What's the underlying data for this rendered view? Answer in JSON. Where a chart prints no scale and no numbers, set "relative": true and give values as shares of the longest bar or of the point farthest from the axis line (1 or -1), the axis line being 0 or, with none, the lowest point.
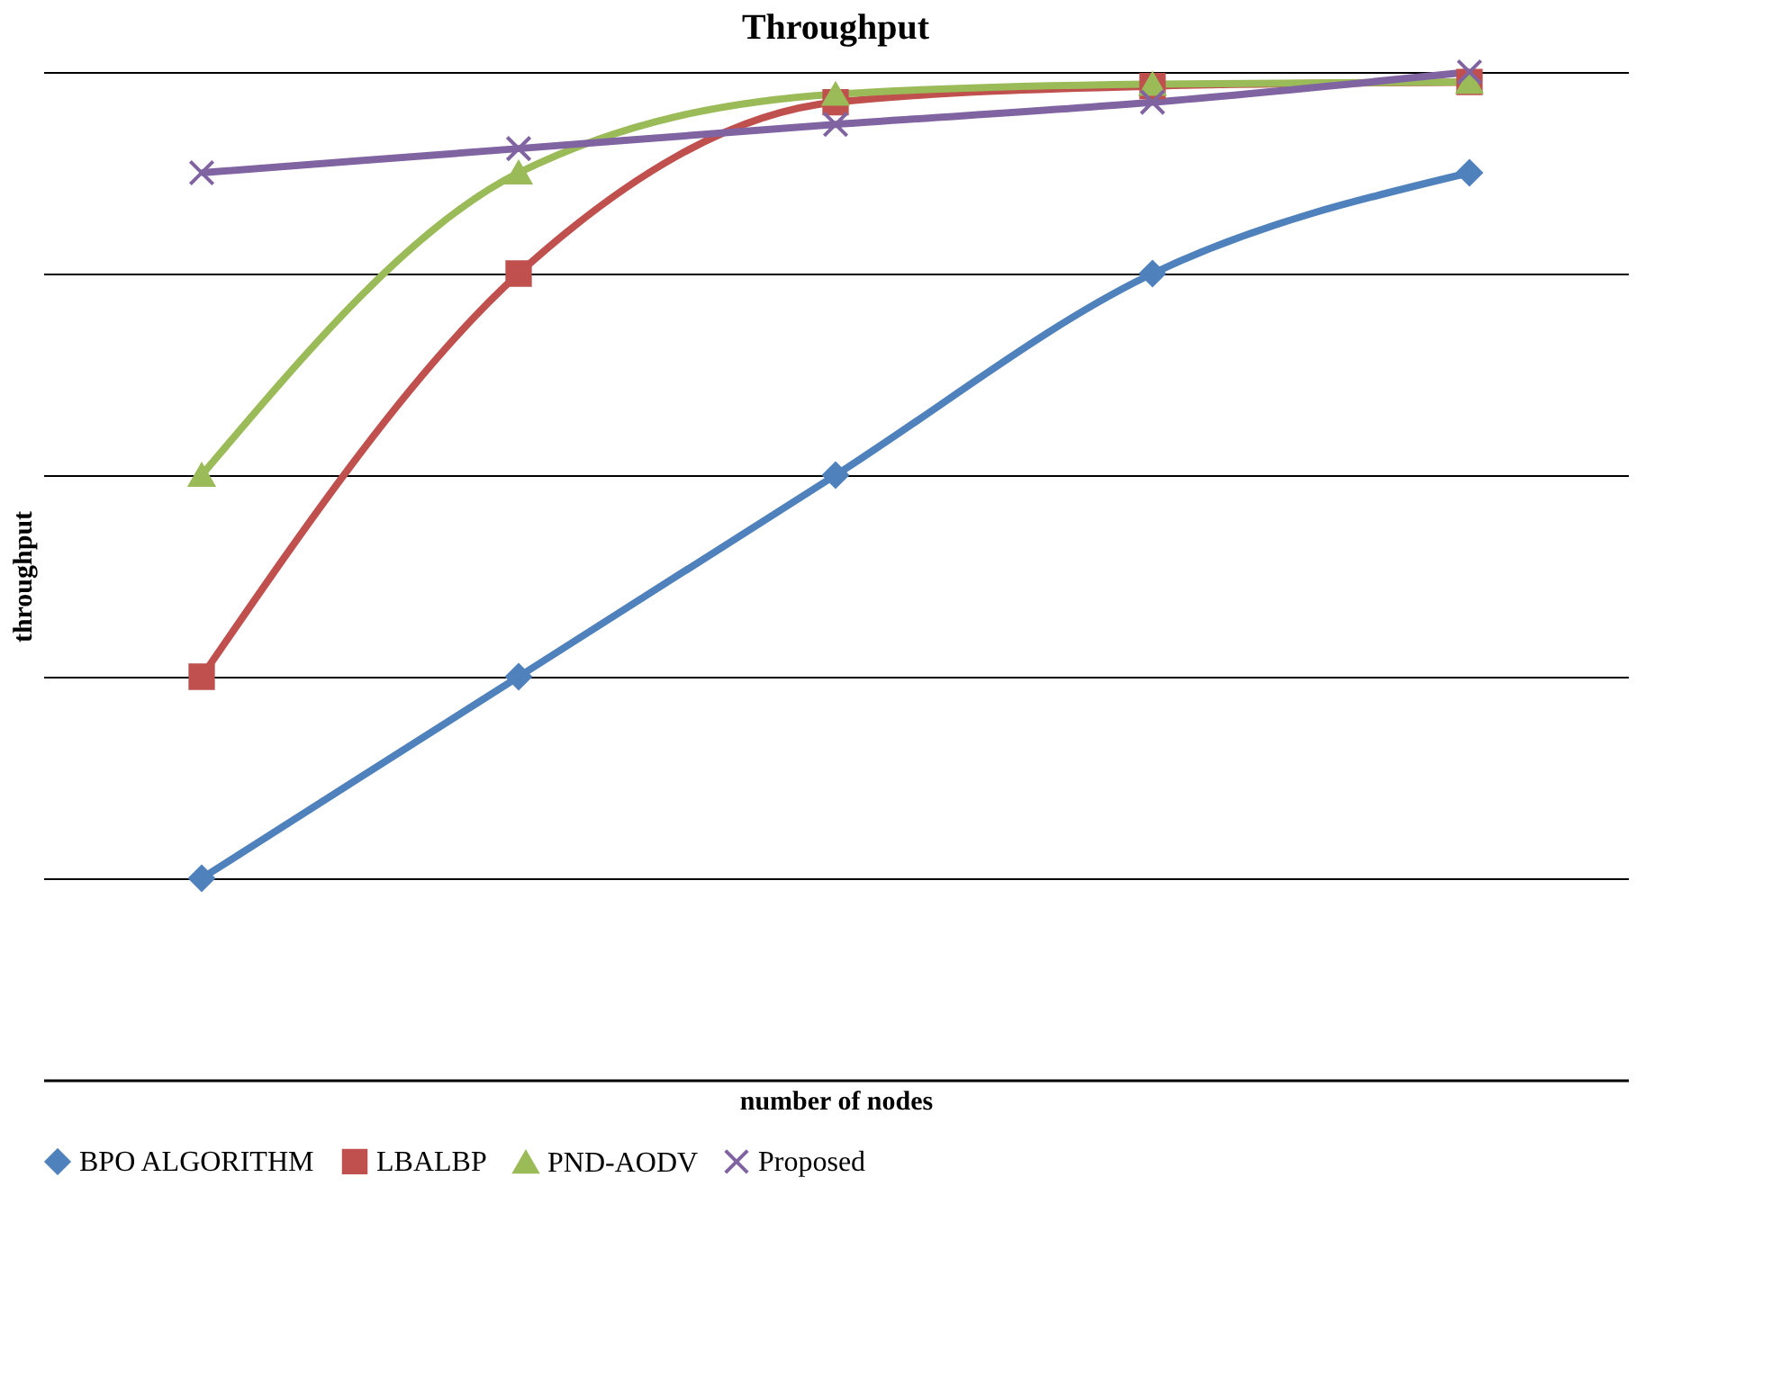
{
  "chart_data": {
    "type": "line",
    "title": "Throughput",
    "xlabel": "number of nodes",
    "ylabel": "throughput",
    "relative": true,
    "legend": "bottom",
    "grid": "y",
    "categories": [
      null,
      null,
      null,
      null,
      null
    ],
    "series": [
      {
        "name": "BPO ALGORITHM",
        "color": "#4f81bd",
        "marker": "diamond",
        "values": [
          0.2,
          0.4,
          0.6,
          0.8,
          0.9
        ]
      },
      {
        "name": "LBALBP",
        "color": "#c0504d",
        "marker": "square",
        "values": [
          0.4,
          0.8,
          0.97,
          0.986,
          0.99
        ]
      },
      {
        "name": "PND-AODV",
        "color": "#9bbb59",
        "marker": "triangle",
        "values": [
          0.6,
          0.9,
          0.978,
          0.988,
          0.99
        ]
      },
      {
        "name": "Proposed",
        "color": "#8064a2",
        "marker": "cross",
        "values": [
          0.9,
          0.924,
          0.948,
          0.97,
          1
        ]
      }
    ]
  }
}
